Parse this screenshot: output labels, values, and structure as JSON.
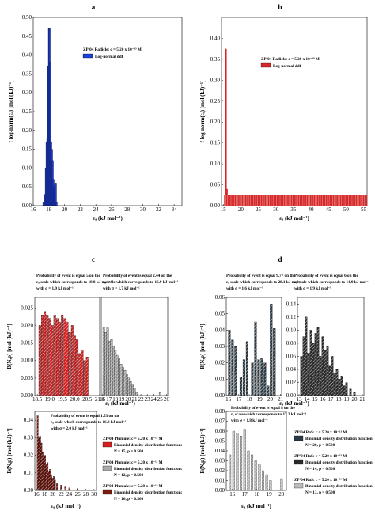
{
  "panels": [
    {
      "letter": "a",
      "type": "bar",
      "legend_title": "ZP²04 Radicle: c = 5.20 x 10⁻¹³ M",
      "legend_entry": "Log-normal ddf",
      "color": "#1f3fd6",
      "xlabel": "εₐ (kJ mol⁻¹)",
      "ylabel": "f log-norm(εₐ) [mol (kJ)⁻¹]",
      "xlim": [
        16,
        35
      ],
      "ylim": [
        0,
        0.5
      ],
      "xticks": [
        "16",
        "18",
        "20",
        "22",
        "24",
        "26",
        "28",
        "30",
        "32",
        "34"
      ],
      "yticks": [
        "0.00",
        "0.05",
        "0.10",
        "0.15",
        "0.20",
        "0.25",
        "0.30",
        "0.35",
        "0.40",
        "0.45",
        "0.50"
      ],
      "chart_data": {
        "type": "bar",
        "x": [
          17.3,
          17.5,
          17.6,
          17.7,
          17.8,
          17.9,
          18.0,
          18.1,
          18.2,
          18.3,
          18.4,
          18.5,
          18.6,
          18.7,
          18.8,
          18.9,
          19.0
        ],
        "values": [
          0.01,
          0.03,
          0.1,
          0.17,
          0.18,
          0.37,
          0.47,
          0.47,
          0.38,
          0.17,
          0.15,
          0.12,
          0.07,
          0.05,
          0.06,
          0.06,
          0.01
        ]
      }
    },
    {
      "letter": "b",
      "type": "bar",
      "legend_title": "ZP²04 Radicle: c = 5.20 x 10⁻¹⁹ M",
      "legend_entry": "Log-normal ddf",
      "color": "#d62a2a",
      "xlabel": "εₐ (kJ mol⁻¹)",
      "ylabel": "f log-norm(εₐ) [mol (kJ)⁻¹]",
      "xlim": [
        14.5,
        56
      ],
      "ylim": [
        0,
        0.45
      ],
      "xticks": [
        "15",
        "20",
        "25",
        "30",
        "35",
        "40",
        "45",
        "50",
        "55"
      ],
      "yticks": [
        "0.00",
        "0.05",
        "0.10",
        "0.15",
        "0.20",
        "0.25",
        "0.30",
        "0.35",
        "0.40"
      ],
      "chart_data": {
        "type": "bar",
        "spike_x": [
          15.8,
          16.1
        ],
        "spike_values": [
          0.375,
          0.04
        ],
        "band_from": 15.2,
        "band_to": 56,
        "band_value": 0.025
      }
    }
  ],
  "c": {
    "letter": "c",
    "ylabel": "B(N,p) [mol (kJ)⁻¹]",
    "xlabel": "εₐ (kJ mol⁻¹)",
    "top_left": {
      "annotation": [
        "Probability of event is equal 5 on the",
        "εₐ scale which corresponds to 18.8 kJ mol⁻¹",
        "with σ = 1.9 kJ mol⁻¹"
      ],
      "xticks": [
        "18.5",
        "19.0",
        "19.5",
        "20.0",
        "20.5",
        "21.0"
      ],
      "yticks": [
        "0.000",
        "0.005",
        "0.010",
        "0.015",
        "0.020",
        "0.025"
      ],
      "color": "#d42020",
      "chart_data": {
        "type": "bar",
        "x": [
          18.6,
          18.7,
          18.8,
          18.9,
          19.0,
          19.1,
          19.2,
          19.3,
          19.4,
          19.5,
          19.6,
          19.7,
          19.8,
          19.9,
          20.0,
          20.1,
          20.2,
          20.3,
          20.4,
          20.5
        ],
        "values": [
          0.02,
          0.023,
          0.024,
          0.023,
          0.022,
          0.02,
          0.023,
          0.022,
          0.021,
          0.023,
          0.022,
          0.021,
          0.018,
          0.02,
          0.017,
          0.016,
          0.012,
          0.013,
          0.01,
          0.011
        ]
      }
    },
    "top_right": {
      "annotation": [
        "Probability of event is equal 2.44 on the",
        "εₐ scale which corresponds to 16.9 kJ mol⁻¹",
        "with σ = 1.7 kJ mol⁻¹"
      ],
      "xticks": [
        "16",
        "17",
        "18",
        "19",
        "20",
        "21",
        "22",
        "23",
        "24",
        "25",
        "26"
      ],
      "color": "#aaaaaa",
      "chart_data": {
        "type": "bar",
        "x": [
          16.2,
          16.5,
          16.8,
          17.1,
          17.4,
          17.7,
          18.0,
          18.3,
          18.6,
          18.9,
          19.2,
          19.5,
          19.8,
          20.1,
          20.4,
          20.7,
          21.0,
          21.3,
          25.0
        ],
        "values": [
          0.0195,
          0.018,
          0.0195,
          0.0155,
          0.016,
          0.014,
          0.013,
          0.0115,
          0.0105,
          0.009,
          0.008,
          0.0072,
          0.006,
          0.005,
          0.004,
          0.003,
          0.002,
          0.001,
          0.0008
        ]
      }
    },
    "bottom": {
      "annotation": [
        "Probability of event is equal 1.53 on the",
        "εₐ scale which corresponds to 16.8 kJ mol⁻¹",
        "with σ = 2.0 kJ mol⁻¹"
      ],
      "xticks": [
        "16",
        "18",
        "20",
        "22",
        "24",
        "26",
        "28",
        "30"
      ],
      "yticks": [
        "0.00",
        "0.01",
        "0.02",
        "0.03",
        "0.04"
      ],
      "color": "#7a1a10",
      "chart_data": {
        "type": "bar",
        "x": [
          16.3,
          16.6,
          16.9,
          17.2,
          17.5,
          17.8,
          18.1,
          18.4,
          18.7,
          19.0,
          19.3,
          19.6,
          19.9,
          20.2,
          20.5,
          21.0,
          22.0,
          23.0,
          24.0,
          26.0
        ],
        "values": [
          0.043,
          0.03,
          0.031,
          0.027,
          0.022,
          0.019,
          0.02,
          0.015,
          0.016,
          0.011,
          0.012,
          0.009,
          0.007,
          0.008,
          0.006,
          0.004,
          0.003,
          0.002,
          0.0015,
          0.001
        ]
      }
    },
    "legend": [
      {
        "title": "ZP²04 Plumule: c = 5.20 x 10⁻¹³ M",
        "label": "Binomial density distribution function:",
        "np": "N = 15, p = 0.500",
        "color": "#d42020"
      },
      {
        "title": "ZP²04 Plumule: c = 5.20 x 10⁻¹⁵ M",
        "label": "Binomial density distribution function:",
        "np": "N = 12, p = 0.500",
        "color": "#aaaaaa"
      },
      {
        "title": "ZP²04 Plumule: c = 5.20 x 10⁻¹⁹ M",
        "label": "Binomial density distribution function:",
        "np": "N = 16, p = 0.500",
        "color": "#7a1a10"
      }
    ]
  },
  "d": {
    "letter": "d",
    "ylabel": "B(N,p) [mol (kJ)⁻¹]",
    "xlabel": "εₐ (kJ mol⁻¹)",
    "top_left": {
      "annotation": [
        "Probability of event is equal 9.77 on the",
        "εₐ scale which corresponds to 20.1 kJ mol⁻¹",
        "with σ = 1.6 kJ mol⁻¹"
      ],
      "xticks": [
        "16",
        "17",
        "18",
        "19",
        "20",
        "21"
      ],
      "yticks": [
        "0.00",
        "0.01",
        "0.02",
        "0.03",
        "0.04",
        "0.05",
        "0.06"
      ],
      "color": "#2a3a44",
      "chart_data": {
        "type": "bar",
        "x": [
          16.1,
          16.4,
          16.7,
          17.2,
          17.5,
          17.8,
          18.3,
          18.6,
          18.9,
          19.2,
          19.5,
          19.8,
          20.1,
          20.4
        ],
        "values": [
          0.04,
          0.034,
          0.03,
          0.011,
          0.022,
          0.033,
          0.02,
          0.045,
          0.022,
          0.023,
          0.02,
          0.006,
          0.056,
          0.041
        ]
      }
    },
    "top_right": {
      "annotation": [
        "Probability of event is equal 6 on the",
        "εₐ scale which corresponds to 14.9 kJ mol⁻¹",
        "with σ = 1.9 kJ mol⁻¹"
      ],
      "xticks": [
        "13",
        "14",
        "15",
        "16",
        "17",
        "18",
        "19",
        "20",
        "21"
      ],
      "yticks": [
        "0.00",
        "0.02",
        "0.04",
        "0.06",
        "0.08",
        "0.10",
        "0.12",
        "0.14"
      ],
      "color": "#2a2a2a",
      "chart_data": {
        "type": "bar",
        "x": [
          13.3,
          13.6,
          13.9,
          14.2,
          14.5,
          14.8,
          15.1,
          15.4,
          15.7,
          16.0,
          16.3,
          16.6,
          16.9,
          17.2,
          17.5,
          17.8,
          18.1,
          18.4,
          18.7,
          19.0,
          19.5,
          20.0
        ],
        "values": [
          0.06,
          0.09,
          0.12,
          0.065,
          0.1,
          0.08,
          0.095,
          0.105,
          0.06,
          0.09,
          0.07,
          0.075,
          0.045,
          0.06,
          0.035,
          0.04,
          0.025,
          0.03,
          0.015,
          0.02,
          0.01,
          0.005
        ]
      }
    },
    "bottom": {
      "annotation": [
        "Probability of event is equal 8 on the",
        "εₐ scale which corresponds to 17.2 kJ mol⁻¹",
        "with σ = 1.8 kJ mol⁻¹"
      ],
      "xticks": [
        "16",
        "17",
        "18",
        "19",
        "20"
      ],
      "yticks": [
        "0.00",
        "0.01",
        "0.02",
        "0.03",
        "0.04",
        "0.05",
        "0.06",
        "0.07",
        "0.08"
      ],
      "color": "#bcbcbc",
      "chart_data": {
        "type": "bar",
        "x": [
          15.8,
          16.1,
          16.4,
          16.7,
          17.0,
          17.3,
          17.6,
          17.9,
          18.2,
          18.5,
          18.8,
          19.1,
          20.0
        ],
        "values": [
          0.036,
          0.06,
          0.058,
          0.055,
          0.062,
          0.04,
          0.036,
          0.03,
          0.027,
          0.02,
          0.016,
          0.01,
          0.012
        ]
      }
    },
    "legend": [
      {
        "title": "ZP²04 RaS: c = 5.20 x 10⁻¹³ M",
        "label": "Binomial density distribution function:",
        "np": "N = 20, p = 0.500",
        "color": "#2a3a44"
      },
      {
        "title": "ZP²04 RaS: c = 5.20 x 10⁻¹⁵ M",
        "label": "Binomial density distribution function:",
        "np": "N = 14, p = 0.500",
        "color": "#2a2a2a"
      },
      {
        "title": "ZP²04 RaS: c = 5.20 x 10⁻¹⁹ M",
        "label": "Binomial density distribution function:",
        "np": "N = 13, p = 0.500",
        "color": "#bcbcbc"
      }
    ]
  }
}
